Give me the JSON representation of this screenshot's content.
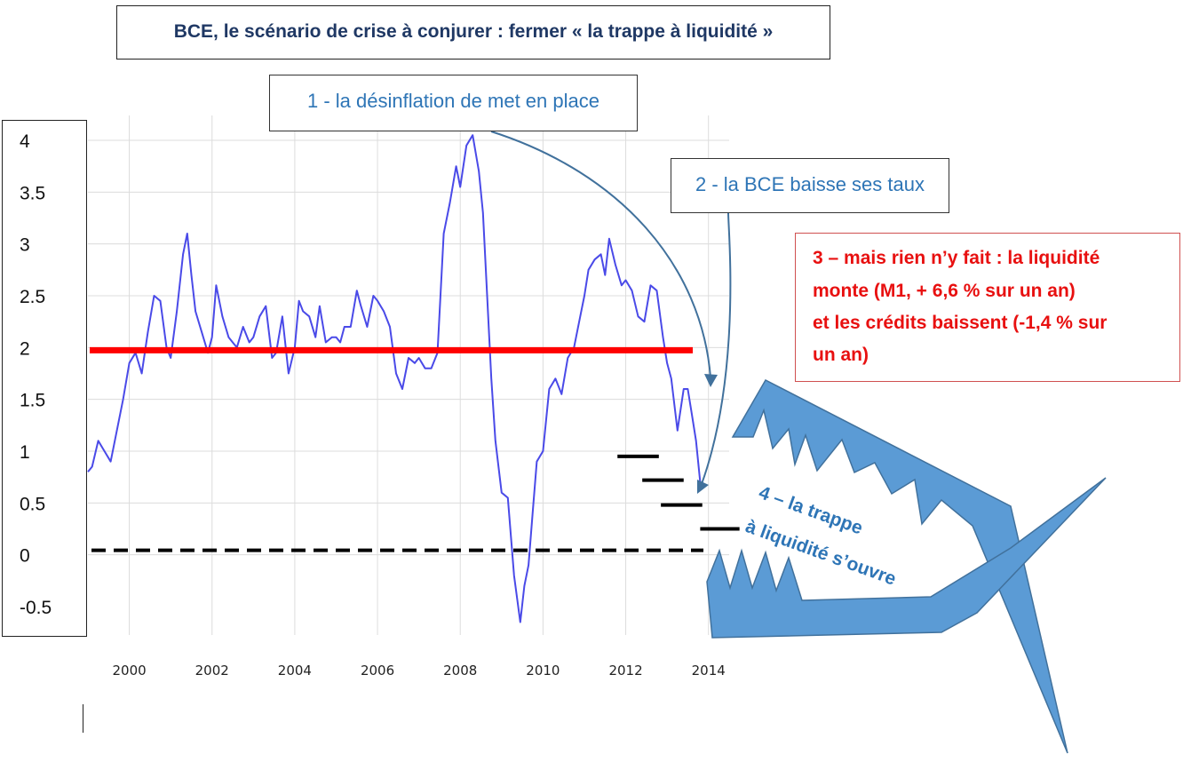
{
  "title": "BCE, le scénario de crise à conjurer : fermer « la trappe à liquidité »",
  "callouts": {
    "c1": "1 - la désinflation de met en place",
    "c2": "2 - la BCE baisse ses taux",
    "c3": [
      "3 – mais rien n’y fait : la liquidité",
      "monte (M1, + 6,6 % sur un an)",
      "et les crédits baissent (-1,4 % sur",
      "un an)"
    ],
    "c4": [
      "4 – la trappe",
      "à liquidité s’ouvre"
    ]
  },
  "colors": {
    "series": "#4a4ae8",
    "target": "#ff0000",
    "zero": "#000000",
    "trap": "#5b9bd5",
    "arrow": "#41719c"
  },
  "chart_data": {
    "type": "line",
    "title": "",
    "xlabel": "",
    "ylabel": "",
    "xlim": [
      1999.0,
      2014.5
    ],
    "ylim": [
      -0.5,
      4
    ],
    "x_ticks": [
      "2000",
      "2002",
      "2004",
      "2006",
      "2008",
      "2010",
      "2012",
      "2014"
    ],
    "y_ticks": [
      "4",
      "3.5",
      "3",
      "2.5",
      "2",
      "1.5",
      "1",
      "0.5",
      "0",
      "-0.5"
    ],
    "grid": true,
    "series": [
      {
        "x": [
          1999.0,
          1999.1,
          1999.25,
          1999.4,
          1999.55,
          1999.7,
          1999.85,
          2000.0,
          2000.15,
          2000.3,
          2000.45,
          2000.6,
          2000.75,
          2000.9,
          2001.0,
          2001.15,
          2001.3,
          2001.4,
          2001.5,
          2001.6,
          2001.75,
          2001.9,
          2002.0,
          2002.1,
          2002.25,
          2002.4,
          2002.5,
          2002.6,
          2002.75,
          2002.9,
          2003.0,
          2003.15,
          2003.3,
          2003.45,
          2003.55,
          2003.7,
          2003.85,
          2004.0,
          2004.1,
          2004.2,
          2004.35,
          2004.5,
          2004.6,
          2004.75,
          2004.9,
          2005.0,
          2005.1,
          2005.2,
          2005.35,
          2005.5,
          2005.6,
          2005.75,
          2005.9,
          2006.0,
          2006.15,
          2006.3,
          2006.45,
          2006.6,
          2006.75,
          2006.9,
          2007.0,
          2007.15,
          2007.3,
          2007.45,
          2007.6,
          2007.75,
          2007.9,
          2008.0,
          2008.15,
          2008.3,
          2008.45,
          2008.55,
          2008.65,
          2008.75,
          2008.85,
          2009.0,
          2009.15,
          2009.3,
          2009.45,
          2009.55,
          2009.65,
          2009.75,
          2009.85,
          2010.0,
          2010.15,
          2010.3,
          2010.45,
          2010.6,
          2010.75,
          2010.9,
          2011.0,
          2011.1,
          2011.25,
          2011.4,
          2011.5,
          2011.6,
          2011.75,
          2011.9,
          2012.0,
          2012.15,
          2012.3,
          2012.45,
          2012.6,
          2012.75,
          2012.9,
          2013.0,
          2013.1,
          2013.25,
          2013.4,
          2013.5,
          2013.6,
          2013.7,
          2013.8
        ],
        "y": [
          0.8,
          0.85,
          1.1,
          1.0,
          0.9,
          1.2,
          1.5,
          1.85,
          1.95,
          1.75,
          2.15,
          2.5,
          2.45,
          2.0,
          1.9,
          2.35,
          2.9,
          3.1,
          2.7,
          2.35,
          2.15,
          1.95,
          2.1,
          2.6,
          2.3,
          2.1,
          2.05,
          2.0,
          2.2,
          2.05,
          2.1,
          2.3,
          2.4,
          1.9,
          1.95,
          2.3,
          1.75,
          2.0,
          2.45,
          2.35,
          2.3,
          2.1,
          2.4,
          2.05,
          2.1,
          2.1,
          2.05,
          2.2,
          2.2,
          2.55,
          2.4,
          2.2,
          2.5,
          2.45,
          2.35,
          2.2,
          1.75,
          1.6,
          1.9,
          1.85,
          1.9,
          1.8,
          1.8,
          1.95,
          3.1,
          3.4,
          3.75,
          3.55,
          3.95,
          4.05,
          3.7,
          3.3,
          2.5,
          1.7,
          1.1,
          0.6,
          0.55,
          -0.2,
          -0.65,
          -0.3,
          -0.1,
          0.4,
          0.9,
          1.0,
          1.6,
          1.7,
          1.55,
          1.9,
          2.0,
          2.3,
          2.5,
          2.75,
          2.85,
          2.9,
          2.7,
          3.05,
          2.8,
          2.6,
          2.65,
          2.55,
          2.3,
          2.25,
          2.6,
          2.55,
          2.1,
          1.85,
          1.7,
          1.2,
          1.6,
          1.6,
          1.35,
          1.1,
          0.7
        ]
      }
    ],
    "annotations": {
      "target_rate": 2,
      "zero_line": 0,
      "rate_steps": [
        {
          "x": [
            2011.8,
            2012.8
          ],
          "y": 0.95
        },
        {
          "x": [
            2012.4,
            2013.4
          ],
          "y": 0.72
        },
        {
          "x": [
            2012.85,
            2013.85
          ],
          "y": 0.48
        },
        {
          "x": [
            2013.8,
            2014.75
          ],
          "y": 0.25
        }
      ]
    }
  }
}
